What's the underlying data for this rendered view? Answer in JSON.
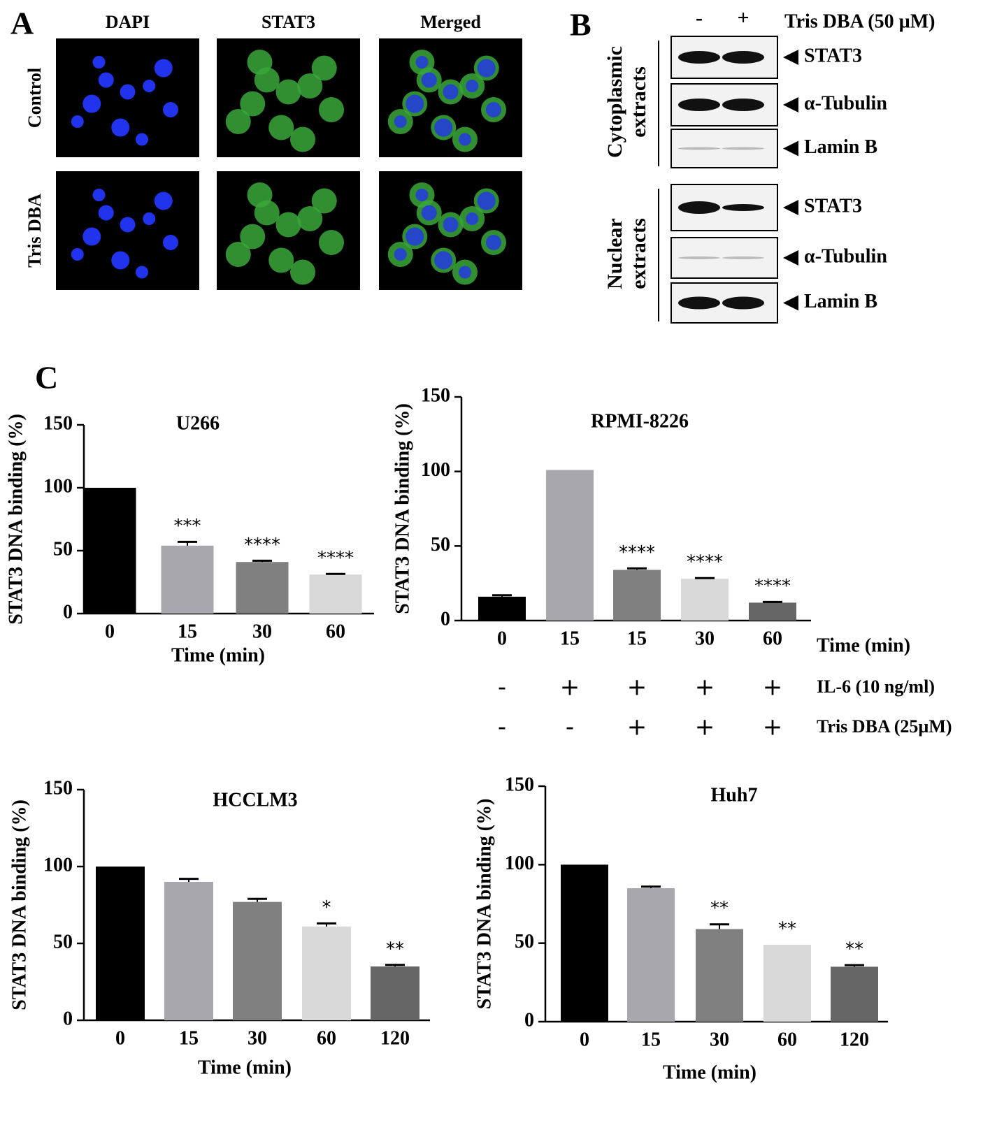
{
  "panel_labels": [
    "A",
    "B",
    "C"
  ],
  "panel_a": {
    "columns": [
      "DAPI",
      "STAT3",
      "Merged"
    ],
    "rows": [
      "Control",
      "Tris DBA"
    ]
  },
  "panel_b": {
    "treatment": "Tris DBA (50 µM)",
    "lanes": [
      "-",
      "+"
    ],
    "groups": [
      {
        "label_lines": [
          "Cytoplasmic",
          "extracts"
        ],
        "bands": [
          "STAT3",
          "α-Tubulin",
          "Lamin B"
        ]
      },
      {
        "label_lines": [
          "Nuclear",
          "extracts"
        ],
        "bands": [
          "STAT3",
          "α-Tubulin",
          "Lamin B"
        ]
      }
    ]
  },
  "chart_data": [
    {
      "type": "bar",
      "title": "U266",
      "xlabel": "Time (min)",
      "ylabel": "STAT3 DNA binding (%)",
      "categories": [
        "0",
        "15",
        "30",
        "60"
      ],
      "values": [
        100,
        54,
        41,
        31
      ],
      "errors": [
        null,
        3,
        1,
        0.5
      ],
      "annotations": [
        null,
        "***",
        "****",
        "****"
      ],
      "colors": [
        "#000000",
        "#a8a7ad",
        "#808080",
        "#d9d9d9"
      ],
      "ylim": [
        0,
        150
      ],
      "yticks": [
        0,
        50,
        100,
        150
      ]
    },
    {
      "type": "bar",
      "title": "RPMI-8226",
      "xlabel": "Time (min)",
      "ylabel": "STAT3 DNA binding (%)",
      "categories": [
        "0",
        "15",
        "15",
        "30",
        "60"
      ],
      "values": [
        16,
        101,
        34,
        28,
        12
      ],
      "errors": [
        1,
        null,
        1,
        0.5,
        0.5
      ],
      "annotations": [
        null,
        null,
        "****",
        "****",
        "****"
      ],
      "colors": [
        "#000000",
        "#a8a7ad",
        "#808080",
        "#d9d9d9",
        "#666666"
      ],
      "conditions": [
        {
          "label": "IL-6 (10 ng/ml)",
          "signs": [
            "-",
            "+",
            "+",
            "+",
            "+"
          ]
        },
        {
          "label": "Tris DBA (25µM)",
          "signs": [
            "-",
            "-",
            "+",
            "+",
            "+"
          ]
        }
      ],
      "ylim": [
        0,
        150
      ],
      "yticks": [
        0,
        50,
        100,
        150
      ]
    },
    {
      "type": "bar",
      "title": "HCCLM3",
      "xlabel": "Time (min)",
      "ylabel": "STAT3 DNA binding (%)",
      "categories": [
        "0",
        "15",
        "30",
        "60",
        "120"
      ],
      "values": [
        100,
        90,
        77,
        61,
        35
      ],
      "errors": [
        null,
        2,
        2,
        2,
        1
      ],
      "annotations": [
        null,
        null,
        null,
        "*",
        "**"
      ],
      "colors": [
        "#000000",
        "#a8a7ad",
        "#808080",
        "#d9d9d9",
        "#666666"
      ],
      "ylim": [
        0,
        150
      ],
      "yticks": [
        0,
        50,
        100,
        150
      ]
    },
    {
      "type": "bar",
      "title": "Huh7",
      "xlabel": "Time (min)",
      "ylabel": "STAT3 DNA binding (%)",
      "categories": [
        "0",
        "15",
        "30",
        "60",
        "120"
      ],
      "values": [
        100,
        85,
        59,
        49,
        35
      ],
      "errors": [
        null,
        1,
        3,
        null,
        1
      ],
      "annotations": [
        null,
        null,
        "**",
        "**",
        "**"
      ],
      "colors": [
        "#000000",
        "#a8a7ad",
        "#808080",
        "#d9d9d9",
        "#666666"
      ],
      "ylim": [
        0,
        150
      ],
      "yticks": [
        0,
        50,
        100,
        150
      ]
    }
  ]
}
